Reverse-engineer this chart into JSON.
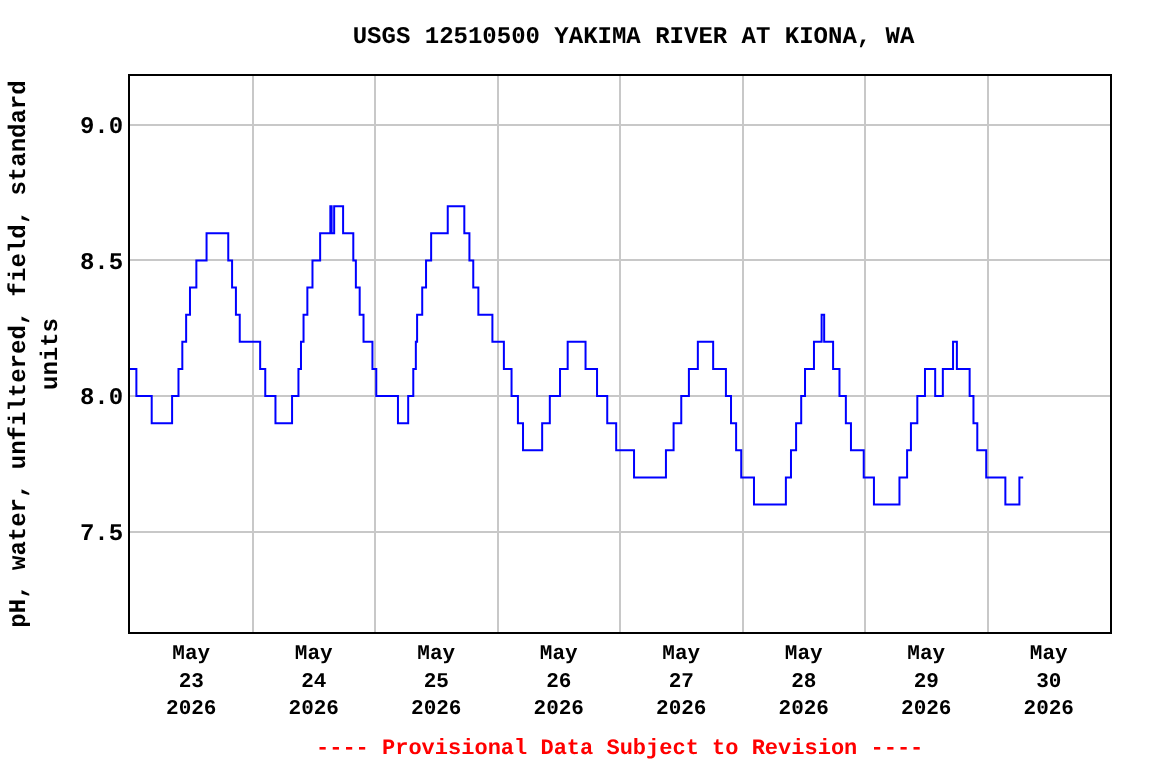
{
  "chart_data": {
    "type": "step",
    "title": "USGS 12510500 YAKIMA RIVER AT KIONA, WA",
    "ylabel": "pH, water, unfiltered, field, standard units",
    "annotations": [
      "---- Provisional Data Subject to Revision ----"
    ],
    "x": [
      "2026-05-23T00:00",
      "2026-05-23T01:15",
      "2026-05-23T04:15",
      "2026-05-23T08:15",
      "2026-05-23T09:30",
      "2026-05-23T10:15",
      "2026-05-23T11:00",
      "2026-05-23T11:45",
      "2026-05-23T13:00",
      "2026-05-23T15:00",
      "2026-05-23T19:15",
      "2026-05-23T20:00",
      "2026-05-23T20:45",
      "2026-05-23T21:30",
      "2026-05-24T01:30",
      "2026-05-24T02:30",
      "2026-05-24T04:30",
      "2026-05-24T07:45",
      "2026-05-24T09:00",
      "2026-05-24T09:30",
      "2026-05-24T10:00",
      "2026-05-24T10:45",
      "2026-05-24T11:45",
      "2026-05-24T13:15",
      "2026-05-24T15:15",
      "2026-05-24T15:30",
      "2026-05-24T16:00",
      "2026-05-24T17:45",
      "2026-05-24T19:45",
      "2026-05-24T20:15",
      "2026-05-24T21:00",
      "2026-05-24T21:45",
      "2026-05-24T23:30",
      "2026-05-25T00:15",
      "2026-05-25T04:30",
      "2026-05-25T06:30",
      "2026-05-25T07:30",
      "2026-05-25T08:00",
      "2026-05-25T08:15",
      "2026-05-25T09:15",
      "2026-05-25T10:00",
      "2026-05-25T11:00",
      "2026-05-25T14:15",
      "2026-05-25T17:30",
      "2026-05-25T18:30",
      "2026-05-25T19:15",
      "2026-05-25T20:15",
      "2026-05-25T23:00",
      "2026-05-26T01:15",
      "2026-05-26T02:45",
      "2026-05-26T04:00",
      "2026-05-26T05:00",
      "2026-05-26T08:45",
      "2026-05-26T10:15",
      "2026-05-26T12:15",
      "2026-05-26T13:45",
      "2026-05-26T17:15",
      "2026-05-26T19:30",
      "2026-05-26T21:30",
      "2026-05-26T23:15",
      "2026-05-27T02:45",
      "2026-05-27T09:00",
      "2026-05-27T10:30",
      "2026-05-27T12:00",
      "2026-05-27T13:30",
      "2026-05-27T15:15",
      "2026-05-27T18:15",
      "2026-05-27T20:45",
      "2026-05-27T21:45",
      "2026-05-27T22:45",
      "2026-05-27T23:45",
      "2026-05-28T02:15",
      "2026-05-28T08:30",
      "2026-05-28T09:30",
      "2026-05-28T10:30",
      "2026-05-28T11:30",
      "2026-05-28T12:15",
      "2026-05-28T14:00",
      "2026-05-28T15:30",
      "2026-05-28T16:00",
      "2026-05-28T17:45",
      "2026-05-28T19:00",
      "2026-05-28T20:15",
      "2026-05-28T21:15",
      "2026-05-28T23:45",
      "2026-05-29T01:45",
      "2026-05-29T06:45",
      "2026-05-29T08:15",
      "2026-05-29T09:00",
      "2026-05-29T10:15",
      "2026-05-29T11:45",
      "2026-05-29T13:45",
      "2026-05-29T15:15",
      "2026-05-29T17:15",
      "2026-05-29T18:00",
      "2026-05-29T20:30",
      "2026-05-29T21:15",
      "2026-05-29T22:00",
      "2026-05-29T23:45",
      "2026-05-30T03:30",
      "2026-05-30T06:15",
      "2026-05-30T07:00"
    ],
    "series": [
      {
        "color": "#0000ff",
        "values": [
          8.1,
          8.0,
          7.9,
          8.0,
          8.1,
          8.2,
          8.3,
          8.4,
          8.5,
          8.6,
          8.5,
          8.4,
          8.3,
          8.2,
          8.1,
          8.0,
          7.9,
          8.0,
          8.1,
          8.2,
          8.3,
          8.4,
          8.5,
          8.6,
          8.7,
          8.6,
          8.7,
          8.6,
          8.5,
          8.4,
          8.3,
          8.2,
          8.1,
          8.0,
          7.9,
          8.0,
          8.1,
          8.2,
          8.3,
          8.4,
          8.5,
          8.6,
          8.7,
          8.6,
          8.5,
          8.4,
          8.3,
          8.2,
          8.1,
          8.0,
          7.9,
          7.8,
          7.9,
          8.0,
          8.1,
          8.2,
          8.1,
          8.0,
          7.9,
          7.8,
          7.7,
          7.8,
          7.9,
          8.0,
          8.1,
          8.2,
          8.1,
          8.0,
          7.9,
          7.8,
          7.7,
          7.6,
          7.7,
          7.8,
          7.9,
          8.0,
          8.1,
          8.2,
          8.3,
          8.2,
          8.1,
          8.0,
          7.9,
          7.8,
          7.7,
          7.6,
          7.7,
          7.8,
          7.9,
          8.0,
          8.1,
          8.0,
          8.1,
          8.2,
          8.1,
          8.0,
          7.9,
          7.8,
          7.7,
          7.6,
          7.7,
          7.7
        ]
      }
    ],
    "xlim": [
      "2026-05-23T00:00",
      "2026-05-31T00:00"
    ],
    "xticks": [
      {
        "value": "2026-05-23T12:00",
        "label": "May\n23\n2026"
      },
      {
        "value": "2026-05-24T00:00",
        "label": null
      },
      {
        "value": "2026-05-24T12:00",
        "label": "May\n24\n2026"
      },
      {
        "value": "2026-05-25T00:00",
        "label": null
      },
      {
        "value": "2026-05-25T12:00",
        "label": "May\n25\n2026"
      },
      {
        "value": "2026-05-26T00:00",
        "label": null
      },
      {
        "value": "2026-05-26T12:00",
        "label": "May\n26\n2026"
      },
      {
        "value": "2026-05-27T00:00",
        "label": null
      },
      {
        "value": "2026-05-27T12:00",
        "label": "May\n27\n2026"
      },
      {
        "value": "2026-05-28T00:00",
        "label": null
      },
      {
        "value": "2026-05-28T12:00",
        "label": "May\n28\n2026"
      },
      {
        "value": "2026-05-29T00:00",
        "label": null
      },
      {
        "value": "2026-05-29T12:00",
        "label": "May\n29\n2026"
      },
      {
        "value": "2026-05-30T00:00",
        "label": null
      },
      {
        "value": "2026-05-30T12:00",
        "label": "May\n30\n2026"
      }
    ],
    "ylim": [
      7.13,
      9.18
    ],
    "yticks": [
      {
        "value": 7.5,
        "label": "7.5"
      },
      {
        "value": 8,
        "label": "8.0"
      },
      {
        "value": 8.5,
        "label": "8.5"
      },
      {
        "value": 9,
        "label": "9.0"
      }
    ],
    "grid": true,
    "line_style": "solid",
    "marker": "none"
  }
}
